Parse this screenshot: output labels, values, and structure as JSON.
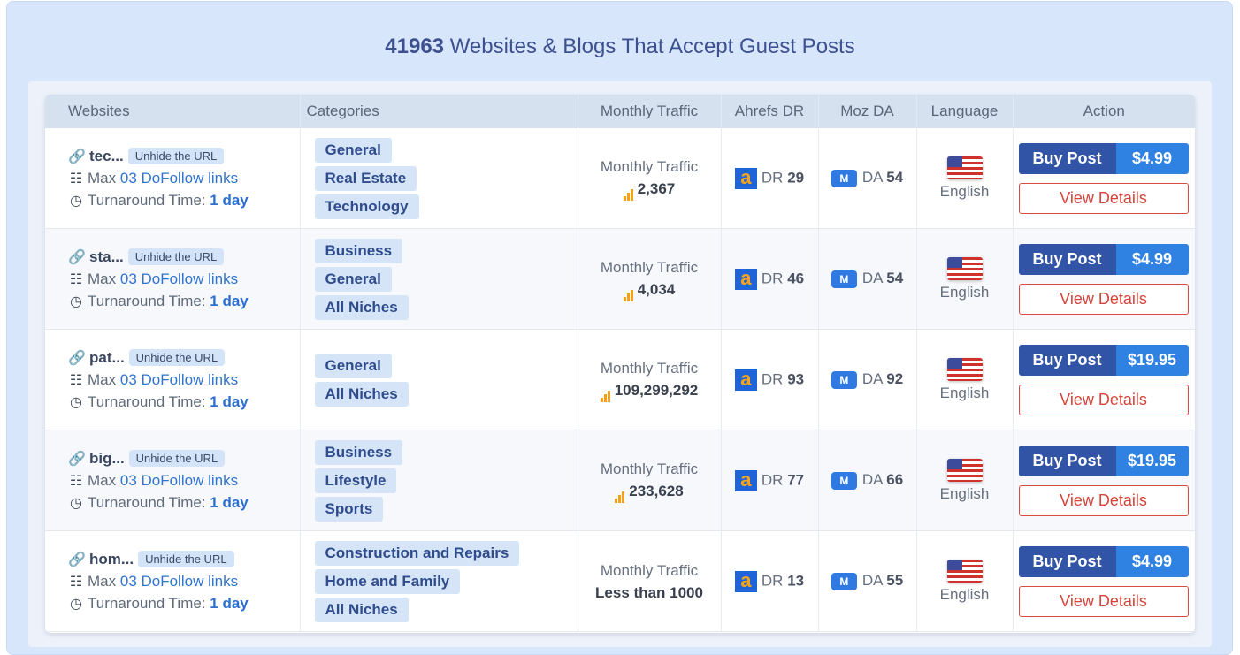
{
  "title": {
    "count": "41963",
    "text": "Websites & Blogs That Accept Guest Posts"
  },
  "columns": [
    "Websites",
    "Categories",
    "Monthly Traffic",
    "Ahrefs DR",
    "Moz DA",
    "Language",
    "Action"
  ],
  "labels": {
    "unhide": "Unhide the URL",
    "max": "Max",
    "links": "03 DoFollow links",
    "turnaround": "Turnaround Time:",
    "traffic": "Monthly Traffic",
    "dr": "DR",
    "da": "DA",
    "moz_badge": "M",
    "ahrefs_badge": "a",
    "buy": "Buy Post",
    "view": "View Details"
  },
  "colors": {
    "buy": "#3254a6",
    "price": "#2f82e2",
    "view": "#d6433a",
    "chip": "#d5e4f7",
    "traffic_icon": "#f2a118"
  },
  "rows": [
    {
      "site": "tec...",
      "turnaround": "1 day",
      "categories": [
        "General",
        "Real Estate",
        "Technology"
      ],
      "traffic": "2,367",
      "dr": "29",
      "da": "54",
      "language": "English",
      "price": "$4.99"
    },
    {
      "site": "sta...",
      "turnaround": "1 day",
      "categories": [
        "Business",
        "General",
        "All Niches"
      ],
      "traffic": "4,034",
      "dr": "46",
      "da": "54",
      "language": "English",
      "price": "$4.99"
    },
    {
      "site": "pat...",
      "turnaround": "1 day",
      "categories": [
        "General",
        "All Niches"
      ],
      "traffic": "109,299,292",
      "dr": "93",
      "da": "92",
      "language": "English",
      "price": "$19.95"
    },
    {
      "site": "big...",
      "turnaround": "1 day",
      "categories": [
        "Business",
        "Lifestyle",
        "Sports"
      ],
      "traffic": "233,628",
      "dr": "77",
      "da": "66",
      "language": "English",
      "price": "$19.95"
    },
    {
      "site": "hom...",
      "turnaround": "1 day",
      "categories": [
        "Construction and Repairs",
        "Home and Family",
        "All Niches"
      ],
      "traffic": "Less than 1000",
      "dr": "13",
      "da": "55",
      "language": "English",
      "price": "$4.99"
    }
  ]
}
